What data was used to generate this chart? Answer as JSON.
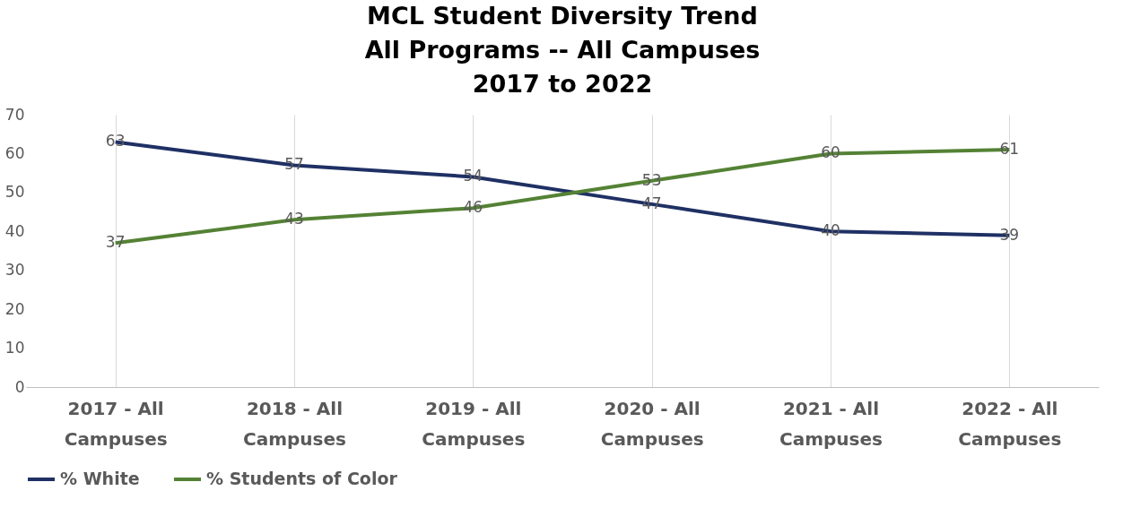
{
  "chart_data": {
    "type": "line",
    "title": "MCL Student Diversity Trend\nAll Programs --  All Campuses\n2017 to 2022",
    "categories": [
      "2017 - All Campuses",
      "2018 - All Campuses",
      "2019 - All Campuses",
      "2020 - All Campuses",
      "2021 - All Campuses",
      "2022 - All Campuses"
    ],
    "series": [
      {
        "name": "% White",
        "color": "#1f3064",
        "values": [
          63,
          57,
          54,
          47,
          40,
          39
        ]
      },
      {
        "name": "% Students of Color",
        "color": "#548235",
        "values": [
          37,
          43,
          46,
          53,
          60,
          61
        ]
      }
    ],
    "ylim": [
      0,
      70
    ],
    "yticks": [
      0,
      10,
      20,
      30,
      40,
      50,
      60,
      70
    ],
    "grid": "x",
    "legend": "bottom",
    "data_labels": true,
    "marker": "none",
    "line_style": "solid"
  }
}
